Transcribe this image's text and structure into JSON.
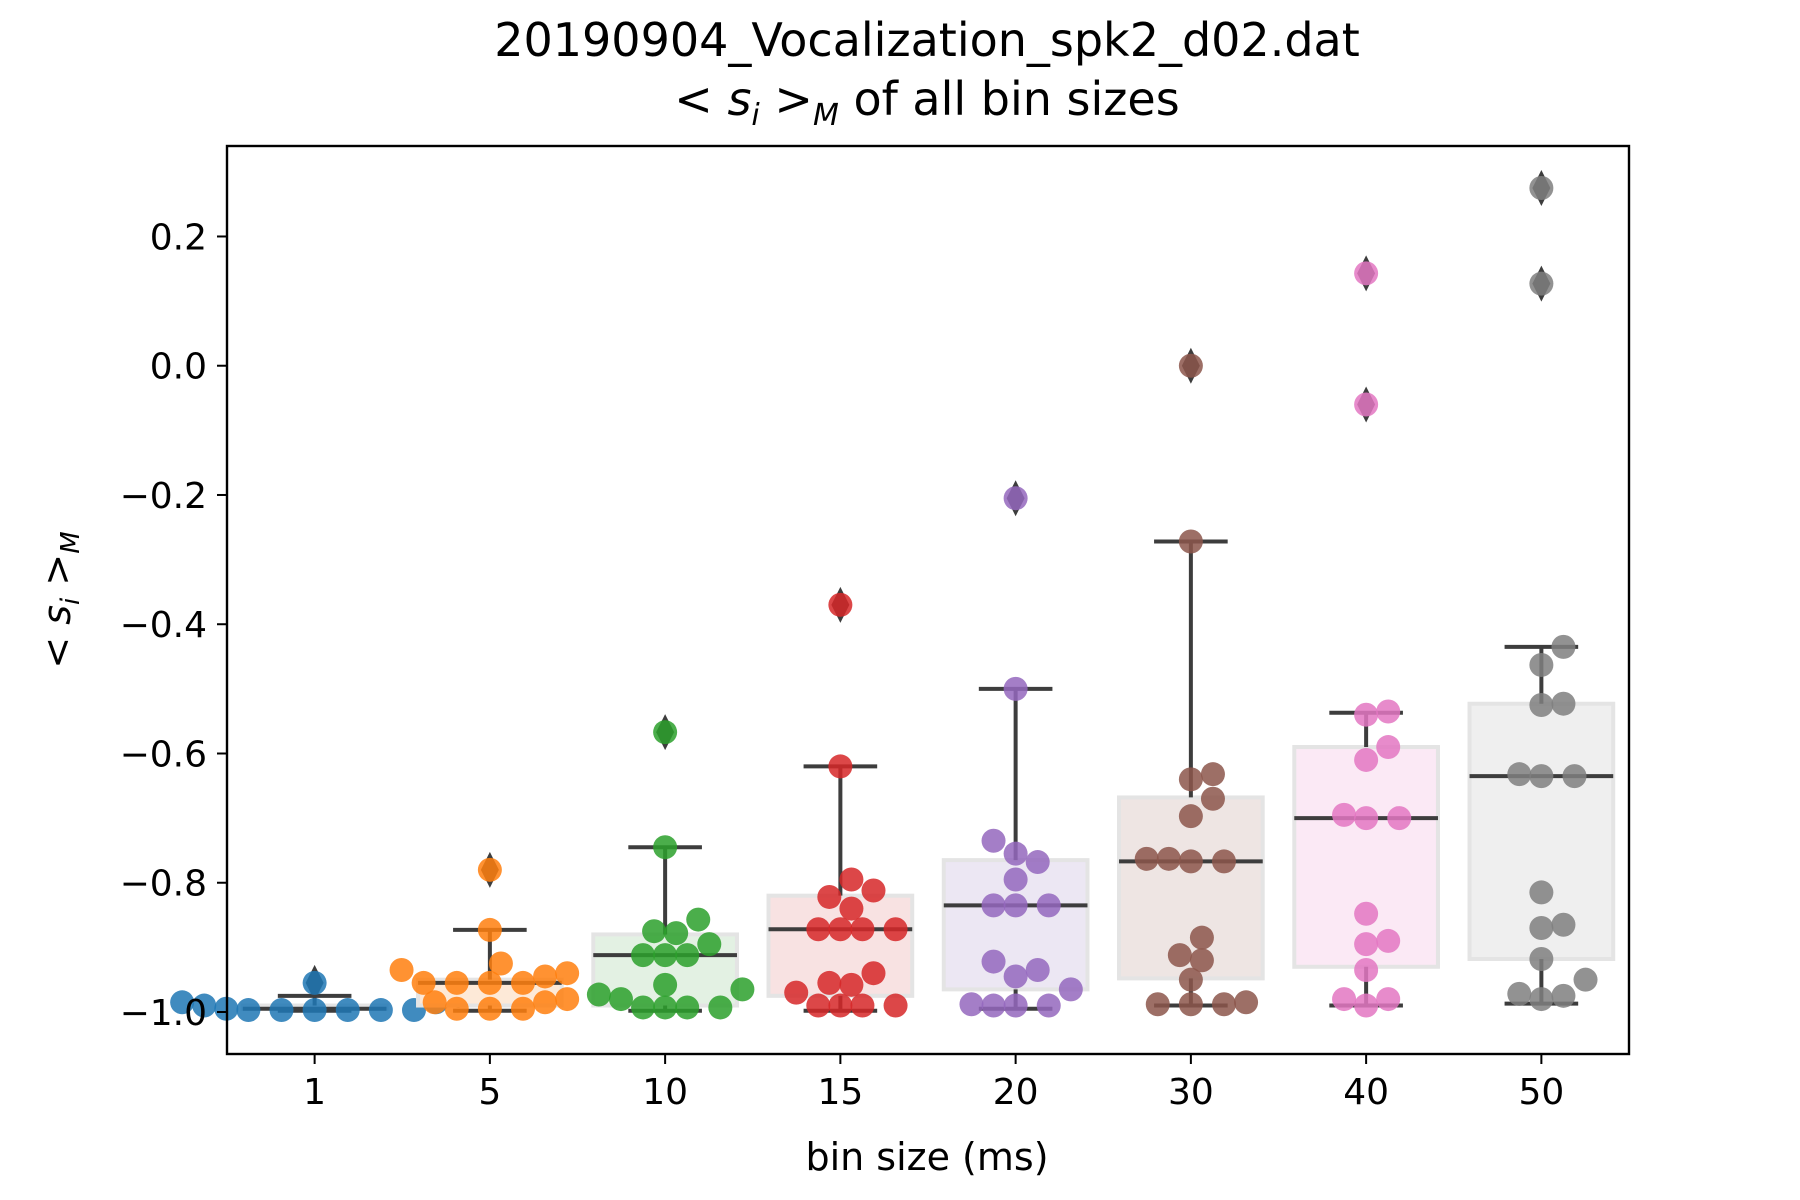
{
  "chart_data": {
    "type": "box-swarm",
    "title_line1": "20190904_Vocalization_spk2_d02.dat",
    "title_line2_math": "< s",
    "title_line2_sub": "i",
    "title_line2_math_end": " >",
    "title_line2_sub2": "M",
    "title_line2_rest": " of all bin sizes",
    "xlabel": "bin size (ms)",
    "ylabel_math": "< s",
    "ylabel_sub": "i",
    "ylabel_math_end": " >",
    "ylabel_sub2": "M",
    "ylim": [
      -1.065,
      0.34
    ],
    "yticks": [
      0.2,
      0.0,
      -0.2,
      -0.4,
      -0.6,
      -0.8,
      -1.0
    ],
    "ytick_labels": [
      "0.2",
      "0.0",
      "−0.2",
      "−0.4",
      "−0.6",
      "−0.8",
      "−1.0"
    ],
    "categories": [
      "1",
      "5",
      "10",
      "15",
      "20",
      "30",
      "40",
      "50"
    ],
    "groups": [
      {
        "category": "1",
        "color": "#1f77b4",
        "box_fill": "#deebf5",
        "q1": -0.995,
        "median": -0.995,
        "q3": -0.99,
        "whisker_low": -0.998,
        "whisker_high": -0.975,
        "points": [
          -0.955,
          -0.975,
          -0.985,
          -0.985,
          -0.99,
          -0.995,
          -0.997,
          -0.997,
          -0.997,
          -0.997,
          -0.997,
          -0.997
        ],
        "outliers": [
          -0.955
        ]
      },
      {
        "category": "5",
        "color": "#ff7f0e",
        "box_fill": "#fde9d7",
        "q1": -0.99,
        "median": -0.955,
        "q3": -0.95,
        "whisker_low": -0.998,
        "whisker_high": -0.873,
        "points": [
          -0.78,
          -0.873,
          -0.925,
          -0.935,
          -0.94,
          -0.945,
          -0.955,
          -0.955,
          -0.955,
          -0.955,
          -0.98,
          -0.985,
          -0.985,
          -0.995,
          -0.995,
          -0.995
        ],
        "outliers": [
          -0.78
        ]
      },
      {
        "category": "10",
        "color": "#2ca02c",
        "box_fill": "#e3f1e3",
        "q1": -0.99,
        "median": -0.912,
        "q3": -0.88,
        "whisker_low": -0.998,
        "whisker_high": -0.745,
        "points": [
          -0.567,
          -0.745,
          -0.857,
          -0.875,
          -0.878,
          -0.895,
          -0.912,
          -0.912,
          -0.912,
          -0.958,
          -0.965,
          -0.973,
          -0.98,
          -0.993,
          -0.993,
          -0.993,
          -0.993
        ],
        "outliers": [
          -0.567
        ]
      },
      {
        "category": "15",
        "color": "#d62728",
        "box_fill": "#f8e2e2",
        "q1": -0.975,
        "median": -0.872,
        "q3": -0.82,
        "whisker_low": -0.998,
        "whisker_high": -0.62,
        "points": [
          -0.37,
          -0.62,
          -0.795,
          -0.812,
          -0.822,
          -0.84,
          -0.872,
          -0.872,
          -0.872,
          -0.872,
          -0.94,
          -0.955,
          -0.958,
          -0.97,
          -0.99,
          -0.99,
          -0.99,
          -0.99
        ],
        "outliers": [
          -0.37
        ]
      },
      {
        "category": "20",
        "color": "#9467bd",
        "box_fill": "#ece7f3",
        "q1": -0.965,
        "median": -0.835,
        "q3": -0.765,
        "whisker_low": -0.995,
        "whisker_high": -0.5,
        "points": [
          -0.205,
          -0.5,
          -0.735,
          -0.755,
          -0.768,
          -0.795,
          -0.835,
          -0.835,
          -0.835,
          -0.922,
          -0.935,
          -0.945,
          -0.965,
          -0.988,
          -0.99,
          -0.99,
          -0.99
        ],
        "outliers": [
          -0.205
        ]
      },
      {
        "category": "30",
        "color": "#8c564b",
        "box_fill": "#eee5e3",
        "q1": -0.948,
        "median": -0.767,
        "q3": -0.668,
        "whisker_low": -0.99,
        "whisker_high": -0.272,
        "points": [
          0.0,
          -0.272,
          -0.632,
          -0.64,
          -0.67,
          -0.697,
          -0.763,
          -0.763,
          -0.767,
          -0.767,
          -0.885,
          -0.912,
          -0.92,
          -0.95,
          -0.985,
          -0.988,
          -0.988,
          -0.988
        ],
        "outliers": [
          0.0
        ]
      },
      {
        "category": "40",
        "color": "#e377c2",
        "box_fill": "#fbe9f5",
        "q1": -0.93,
        "median": -0.7,
        "q3": -0.59,
        "whisker_low": -0.99,
        "whisker_high": -0.537,
        "points": [
          0.143,
          -0.06,
          -0.535,
          -0.54,
          -0.59,
          -0.61,
          -0.695,
          -0.7,
          -0.7,
          -0.848,
          -0.89,
          -0.895,
          -0.935,
          -0.98,
          -0.98,
          -0.99
        ],
        "outliers": [
          0.143,
          -0.06
        ]
      },
      {
        "category": "50",
        "color": "#7f7f7f",
        "box_fill": "#efefef",
        "q1": -0.918,
        "median": -0.635,
        "q3": -0.523,
        "whisker_low": -0.987,
        "whisker_high": -0.435,
        "points": [
          0.275,
          0.127,
          -0.435,
          -0.463,
          -0.523,
          -0.525,
          -0.632,
          -0.635,
          -0.635,
          -0.815,
          -0.865,
          -0.87,
          -0.918,
          -0.95,
          -0.972,
          -0.975,
          -0.98
        ],
        "outliers": [
          0.275,
          0.127
        ]
      }
    ],
    "grid": false,
    "legend": "none"
  }
}
